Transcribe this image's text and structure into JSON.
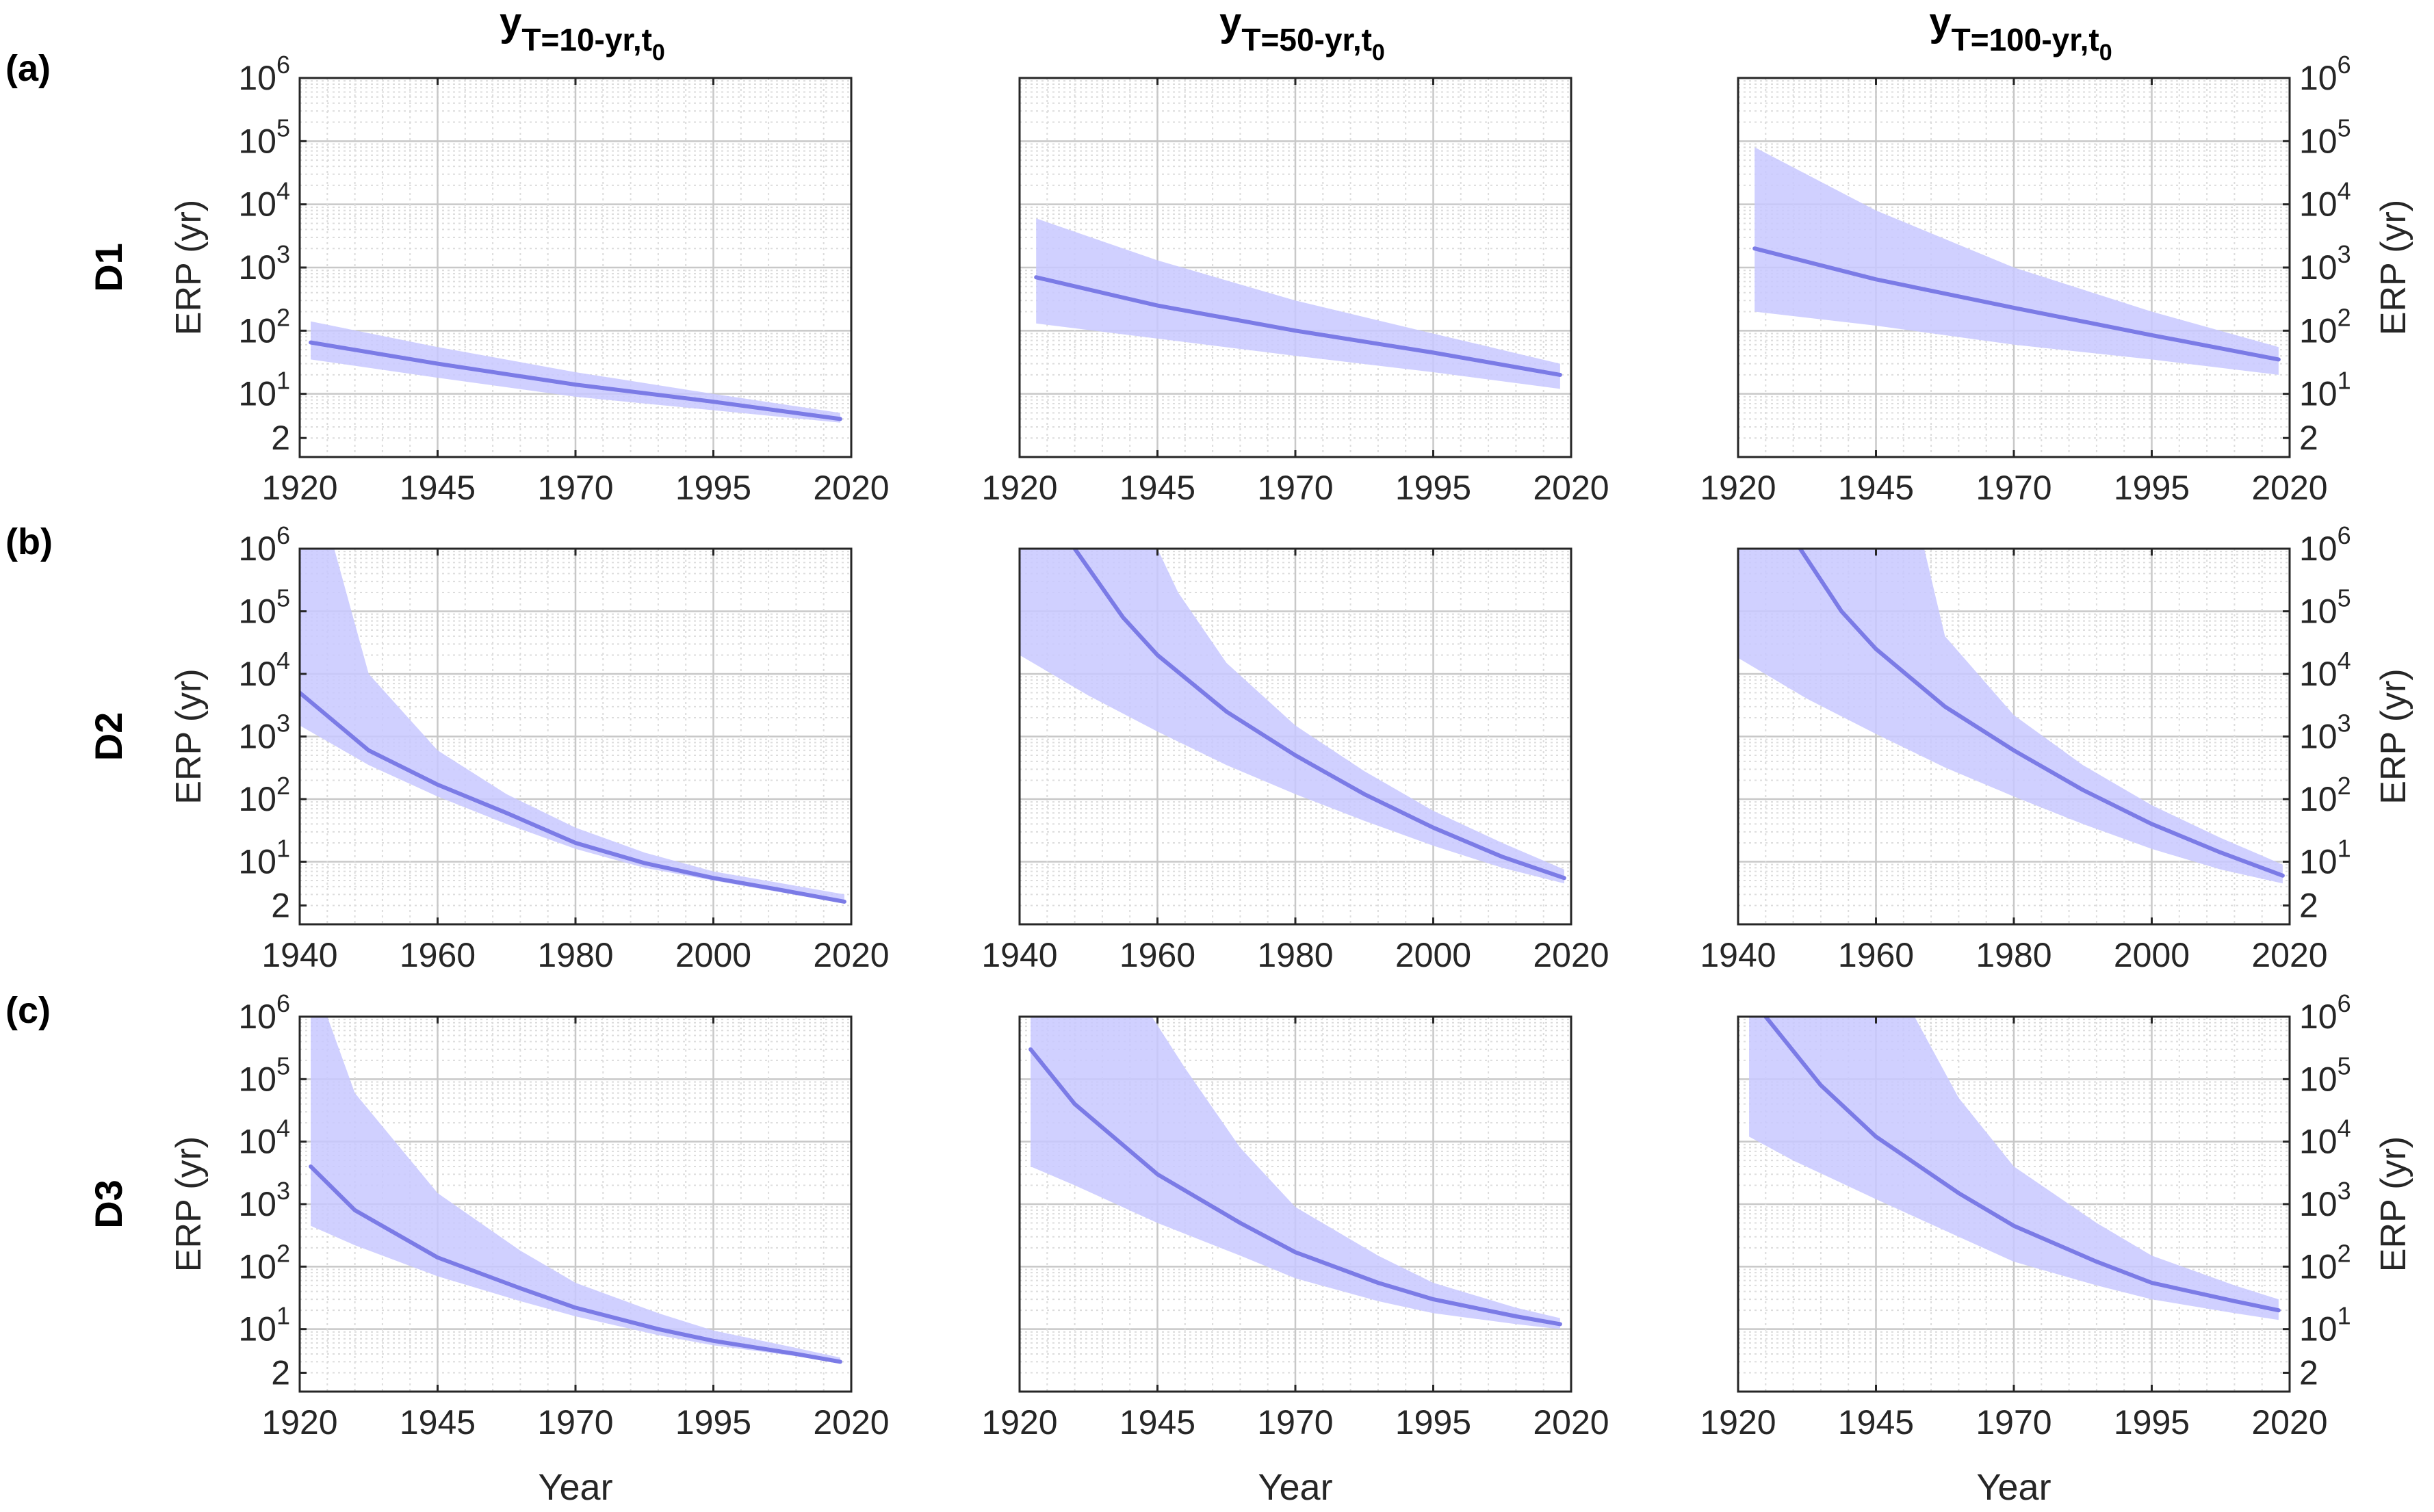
{
  "figure": {
    "column_titles": [
      {
        "base": "y",
        "sub": "T=10-yr,t",
        "subsub": "0"
      },
      {
        "base": "y",
        "sub": "T=50-yr,t",
        "subsub": "0"
      },
      {
        "base": "y",
        "sub": "T=100-yr,t",
        "subsub": "0"
      }
    ],
    "row_letters": [
      "(a)",
      "(b)",
      "(c)"
    ],
    "row_names": [
      "D1",
      "D2",
      "D3"
    ],
    "ylabel": "ERP (yr)",
    "xlabel": "Year",
    "colors": {
      "line": "#7b7be6",
      "band": "#c8c8ff",
      "grid_major": "#c8c8c8",
      "grid_minor": "#dcdcdc",
      "axes": "#262626"
    }
  },
  "chart_data": [
    {
      "type": "area",
      "title": "y_T=10-yr,t0",
      "row": "D1",
      "panel": "(a)",
      "xlabel": "",
      "ylabel": "ERP (yr)",
      "yscale": "log",
      "xlim": [
        1920,
        2020
      ],
      "ylim": [
        1,
        1000000
      ],
      "xticks": [
        1920,
        1945,
        1970,
        1995,
        2020
      ],
      "yticks": [
        {
          "v": 2,
          "base": "2",
          "exp": ""
        },
        {
          "v": 10,
          "base": "10",
          "exp": "1"
        },
        {
          "v": 100,
          "base": "10",
          "exp": "2"
        },
        {
          "v": 1000,
          "base": "10",
          "exp": "3"
        },
        {
          "v": 10000,
          "base": "10",
          "exp": "4"
        },
        {
          "v": 100000,
          "base": "10",
          "exp": "5"
        },
        {
          "v": 1000000,
          "base": "10",
          "exp": "6"
        }
      ],
      "ytick_side": "left",
      "show_xlabel": false,
      "series": [
        {
          "name": "median",
          "x": [
            1922,
            1945,
            1970,
            1995,
            2018
          ],
          "y": [
            65,
            30,
            14,
            7.5,
            4
          ]
        },
        {
          "name": "upper",
          "x": [
            1922,
            1945,
            1970,
            1995,
            2018
          ],
          "y": [
            140,
            55,
            22,
            10,
            5
          ]
        },
        {
          "name": "lower",
          "x": [
            1922,
            1945,
            1970,
            1995,
            2018
          ],
          "y": [
            35,
            18,
            9,
            5.5,
            3.5
          ]
        }
      ]
    },
    {
      "type": "area",
      "title": "y_T=50-yr,t0",
      "row": "D1",
      "panel": "(a)",
      "xlabel": "",
      "ylabel": "",
      "yscale": "log",
      "xlim": [
        1920,
        2020
      ],
      "ylim": [
        1,
        1000000
      ],
      "xticks": [
        1920,
        1945,
        1970,
        1995,
        2020
      ],
      "yticks": [],
      "ytick_side": "none",
      "show_xlabel": false,
      "series": [
        {
          "name": "median",
          "x": [
            1923,
            1945,
            1970,
            1995,
            2018
          ],
          "y": [
            700,
            250,
            100,
            45,
            20
          ]
        },
        {
          "name": "upper",
          "x": [
            1923,
            1945,
            1970,
            1995,
            2018
          ],
          "y": [
            6000,
            1300,
            300,
            90,
            30
          ]
        },
        {
          "name": "lower",
          "x": [
            1923,
            1945,
            1970,
            1995,
            2018
          ],
          "y": [
            130,
            75,
            40,
            22,
            12
          ]
        }
      ]
    },
    {
      "type": "area",
      "title": "y_T=100-yr,t0",
      "row": "D1",
      "panel": "(a)",
      "xlabel": "",
      "ylabel": "ERP (yr)",
      "yscale": "log",
      "xlim": [
        1920,
        2020
      ],
      "ylim": [
        1,
        1000000
      ],
      "xticks": [
        1920,
        1945,
        1970,
        1995,
        2020
      ],
      "yticks": [
        {
          "v": 2,
          "base": "2",
          "exp": ""
        },
        {
          "v": 10,
          "base": "10",
          "exp": "1"
        },
        {
          "v": 100,
          "base": "10",
          "exp": "2"
        },
        {
          "v": 1000,
          "base": "10",
          "exp": "3"
        },
        {
          "v": 10000,
          "base": "10",
          "exp": "4"
        },
        {
          "v": 100000,
          "base": "10",
          "exp": "5"
        },
        {
          "v": 1000000,
          "base": "10",
          "exp": "6"
        }
      ],
      "ytick_side": "right",
      "show_xlabel": false,
      "series": [
        {
          "name": "median",
          "x": [
            1923,
            1945,
            1970,
            1995,
            2018
          ],
          "y": [
            2000,
            650,
            230,
            85,
            35
          ]
        },
        {
          "name": "upper",
          "x": [
            1923,
            1945,
            1970,
            1995,
            2018
          ],
          "y": [
            80000,
            8000,
            1000,
            200,
            55
          ]
        },
        {
          "name": "lower",
          "x": [
            1923,
            1945,
            1970,
            1995,
            2018
          ],
          "y": [
            200,
            120,
            60,
            35,
            20
          ]
        }
      ]
    },
    {
      "type": "area",
      "title": "y_T=10-yr,t0",
      "row": "D2",
      "panel": "(b)",
      "xlabel": "",
      "ylabel": "ERP (yr)",
      "yscale": "log",
      "xlim": [
        1940,
        2020
      ],
      "ylim": [
        1,
        1000000
      ],
      "xticks": [
        1940,
        1960,
        1980,
        2000,
        2020
      ],
      "yticks": [
        {
          "v": 2,
          "base": "2",
          "exp": ""
        },
        {
          "v": 10,
          "base": "10",
          "exp": "1"
        },
        {
          "v": 100,
          "base": "10",
          "exp": "2"
        },
        {
          "v": 1000,
          "base": "10",
          "exp": "3"
        },
        {
          "v": 10000,
          "base": "10",
          "exp": "4"
        },
        {
          "v": 100000,
          "base": "10",
          "exp": "5"
        },
        {
          "v": 1000000,
          "base": "10",
          "exp": "6"
        }
      ],
      "ytick_side": "left",
      "show_xlabel": false,
      "series": [
        {
          "name": "median",
          "x": [
            1940,
            1950,
            1960,
            1970,
            1980,
            1990,
            2000,
            2010,
            2019
          ],
          "y": [
            5000,
            600,
            170,
            60,
            20,
            9.5,
            5.5,
            3.5,
            2.3
          ]
        },
        {
          "name": "upper",
          "x": [
            1940,
            1945,
            1950,
            1960,
            1970,
            1980,
            1990,
            2000,
            2010,
            2019
          ],
          "y": [
            1000000,
            1000000,
            10000,
            600,
            120,
            35,
            14,
            7,
            4.5,
            3
          ]
        },
        {
          "name": "lower",
          "x": [
            1940,
            1950,
            1960,
            1970,
            1980,
            1990,
            2000,
            2010,
            2019
          ],
          "y": [
            1500,
            350,
            110,
            40,
            16,
            8,
            5,
            3.2,
            2.2
          ]
        }
      ]
    },
    {
      "type": "area",
      "title": "y_T=50-yr,t0",
      "row": "D2",
      "panel": "(b)",
      "xlabel": "",
      "ylabel": "",
      "yscale": "log",
      "xlim": [
        1940,
        2020
      ],
      "ylim": [
        1,
        1000000
      ],
      "xticks": [
        1940,
        1960,
        1980,
        2000,
        2020
      ],
      "yticks": [],
      "ytick_side": "none",
      "show_xlabel": false,
      "series": [
        {
          "name": "median",
          "x": [
            1948,
            1955,
            1960,
            1970,
            1980,
            1990,
            2000,
            2010,
            2019
          ],
          "y": [
            1000000,
            80000,
            20000,
            2500,
            500,
            120,
            35,
            12,
            5.5
          ]
        },
        {
          "name": "upper",
          "x": [
            1940,
            1960,
            1963,
            1970,
            1980,
            1990,
            2000,
            2010,
            2019
          ],
          "y": [
            1000000,
            1000000,
            200000,
            15000,
            1500,
            280,
            65,
            20,
            7.5
          ]
        },
        {
          "name": "lower",
          "x": [
            1940,
            1950,
            1960,
            1970,
            1980,
            1990,
            2000,
            2010,
            2019
          ],
          "y": [
            20000,
            4500,
            1200,
            350,
            120,
            45,
            18,
            8,
            4.5
          ]
        }
      ]
    },
    {
      "type": "area",
      "title": "y_T=100-yr,t0",
      "row": "D2",
      "panel": "(b)",
      "xlabel": "",
      "ylabel": "ERP (yr)",
      "yscale": "log",
      "xlim": [
        1940,
        2020
      ],
      "ylim": [
        1,
        1000000
      ],
      "xticks": [
        1940,
        1960,
        1980,
        2000,
        2020
      ],
      "yticks": [
        {
          "v": 2,
          "base": "2",
          "exp": ""
        },
        {
          "v": 10,
          "base": "10",
          "exp": "1"
        },
        {
          "v": 100,
          "base": "10",
          "exp": "2"
        },
        {
          "v": 1000,
          "base": "10",
          "exp": "3"
        },
        {
          "v": 10000,
          "base": "10",
          "exp": "4"
        },
        {
          "v": 100000,
          "base": "10",
          "exp": "5"
        },
        {
          "v": 1000000,
          "base": "10",
          "exp": "6"
        }
      ],
      "ytick_side": "right",
      "show_xlabel": false,
      "series": [
        {
          "name": "median",
          "x": [
            1949,
            1955,
            1960,
            1970,
            1980,
            1990,
            2000,
            2010,
            2019
          ],
          "y": [
            1000000,
            100000,
            25000,
            3000,
            600,
            140,
            40,
            14,
            6
          ]
        },
        {
          "name": "upper",
          "x": [
            1940,
            1967,
            1970,
            1980,
            1990,
            2000,
            2010,
            2019
          ],
          "y": [
            1000000,
            1000000,
            40000,
            2200,
            350,
            80,
            24,
            9
          ]
        },
        {
          "name": "lower",
          "x": [
            1940,
            1950,
            1960,
            1970,
            1980,
            1990,
            2000,
            2010,
            2019
          ],
          "y": [
            18000,
            4000,
            1100,
            320,
            110,
            40,
            16,
            7.5,
            4.5
          ]
        }
      ]
    },
    {
      "type": "area",
      "title": "y_T=10-yr,t0",
      "row": "D3",
      "panel": "(c)",
      "xlabel": "Year",
      "ylabel": "ERP (yr)",
      "yscale": "log",
      "xlim": [
        1920,
        2020
      ],
      "ylim": [
        1,
        1000000
      ],
      "xticks": [
        1920,
        1945,
        1970,
        1995,
        2020
      ],
      "yticks": [
        {
          "v": 2,
          "base": "2",
          "exp": ""
        },
        {
          "v": 10,
          "base": "10",
          "exp": "1"
        },
        {
          "v": 100,
          "base": "10",
          "exp": "2"
        },
        {
          "v": 1000,
          "base": "10",
          "exp": "3"
        },
        {
          "v": 10000,
          "base": "10",
          "exp": "4"
        },
        {
          "v": 100000,
          "base": "10",
          "exp": "5"
        },
        {
          "v": 1000000,
          "base": "10",
          "exp": "6"
        }
      ],
      "ytick_side": "left",
      "show_xlabel": true,
      "series": [
        {
          "name": "median",
          "x": [
            1922,
            1930,
            1945,
            1960,
            1970,
            1985,
            1995,
            2010,
            2018
          ],
          "y": [
            4000,
            800,
            140,
            45,
            22,
            10,
            6.5,
            4,
            3
          ]
        },
        {
          "name": "upper",
          "x": [
            1922,
            1925,
            1930,
            1945,
            1960,
            1970,
            1985,
            1995,
            2010,
            2018
          ],
          "y": [
            1000000,
            1000000,
            60000,
            1500,
            180,
            55,
            18,
            9.5,
            5,
            3.5
          ]
        },
        {
          "name": "lower",
          "x": [
            1922,
            1930,
            1945,
            1960,
            1970,
            1985,
            1995,
            2010,
            2018
          ],
          "y": [
            450,
            220,
            70,
            28,
            16,
            8,
            5.5,
            3.7,
            2.9
          ]
        }
      ]
    },
    {
      "type": "area",
      "title": "y_T=50-yr,t0",
      "row": "D3",
      "panel": "(c)",
      "xlabel": "Year",
      "ylabel": "",
      "yscale": "log",
      "xlim": [
        1920,
        2020
      ],
      "ylim": [
        1,
        1000000
      ],
      "xticks": [
        1920,
        1945,
        1970,
        1995,
        2020
      ],
      "yticks": [],
      "ytick_side": "none",
      "show_xlabel": true,
      "series": [
        {
          "name": "median",
          "x": [
            1922,
            1930,
            1945,
            1960,
            1970,
            1985,
            1995,
            2010,
            2018
          ],
          "y": [
            300000,
            40000,
            3000,
            500,
            170,
            55,
            30,
            16,
            12
          ]
        },
        {
          "name": "upper",
          "x": [
            1922,
            1944,
            1950,
            1960,
            1970,
            1985,
            1995,
            2010,
            2018
          ],
          "y": [
            1000000,
            1000000,
            150000,
            8000,
            900,
            150,
            55,
            22,
            15
          ]
        },
        {
          "name": "lower",
          "x": [
            1922,
            1930,
            1945,
            1960,
            1970,
            1985,
            1995,
            2010,
            2018
          ],
          "y": [
            4000,
            2000,
            500,
            150,
            65,
            28,
            18,
            12,
            10
          ]
        }
      ]
    },
    {
      "type": "area",
      "title": "y_T=100-yr,t0",
      "row": "D3",
      "panel": "(c)",
      "xlabel": "Year",
      "ylabel": "ERP (yr)",
      "yscale": "log",
      "xlim": [
        1920,
        2020
      ],
      "ylim": [
        1,
        1000000
      ],
      "xticks": [
        1920,
        1945,
        1970,
        1995,
        2020
      ],
      "yticks": [
        {
          "v": 2,
          "base": "2",
          "exp": ""
        },
        {
          "v": 10,
          "base": "10",
          "exp": "1"
        },
        {
          "v": 100,
          "base": "10",
          "exp": "2"
        },
        {
          "v": 1000,
          "base": "10",
          "exp": "3"
        },
        {
          "v": 10000,
          "base": "10",
          "exp": "4"
        },
        {
          "v": 100000,
          "base": "10",
          "exp": "5"
        },
        {
          "v": 1000000,
          "base": "10",
          "exp": "6"
        }
      ],
      "ytick_side": "right",
      "show_xlabel": true,
      "series": [
        {
          "name": "median",
          "x": [
            1925,
            1935,
            1945,
            1960,
            1970,
            1985,
            1995,
            2010,
            2018
          ],
          "y": [
            1000000,
            80000,
            12000,
            1500,
            450,
            120,
            55,
            28,
            20
          ]
        },
        {
          "name": "upper",
          "x": [
            1922,
            1952,
            1960,
            1970,
            1985,
            1995,
            2010,
            2018
          ],
          "y": [
            1000000,
            1000000,
            50000,
            4000,
            500,
            150,
            50,
            30
          ]
        },
        {
          "name": "lower",
          "x": [
            1922,
            1930,
            1945,
            1960,
            1970,
            1985,
            1995,
            2010,
            2018
          ],
          "y": [
            12000,
            5000,
            1200,
            300,
            120,
            50,
            30,
            18,
            14
          ]
        }
      ]
    }
  ]
}
